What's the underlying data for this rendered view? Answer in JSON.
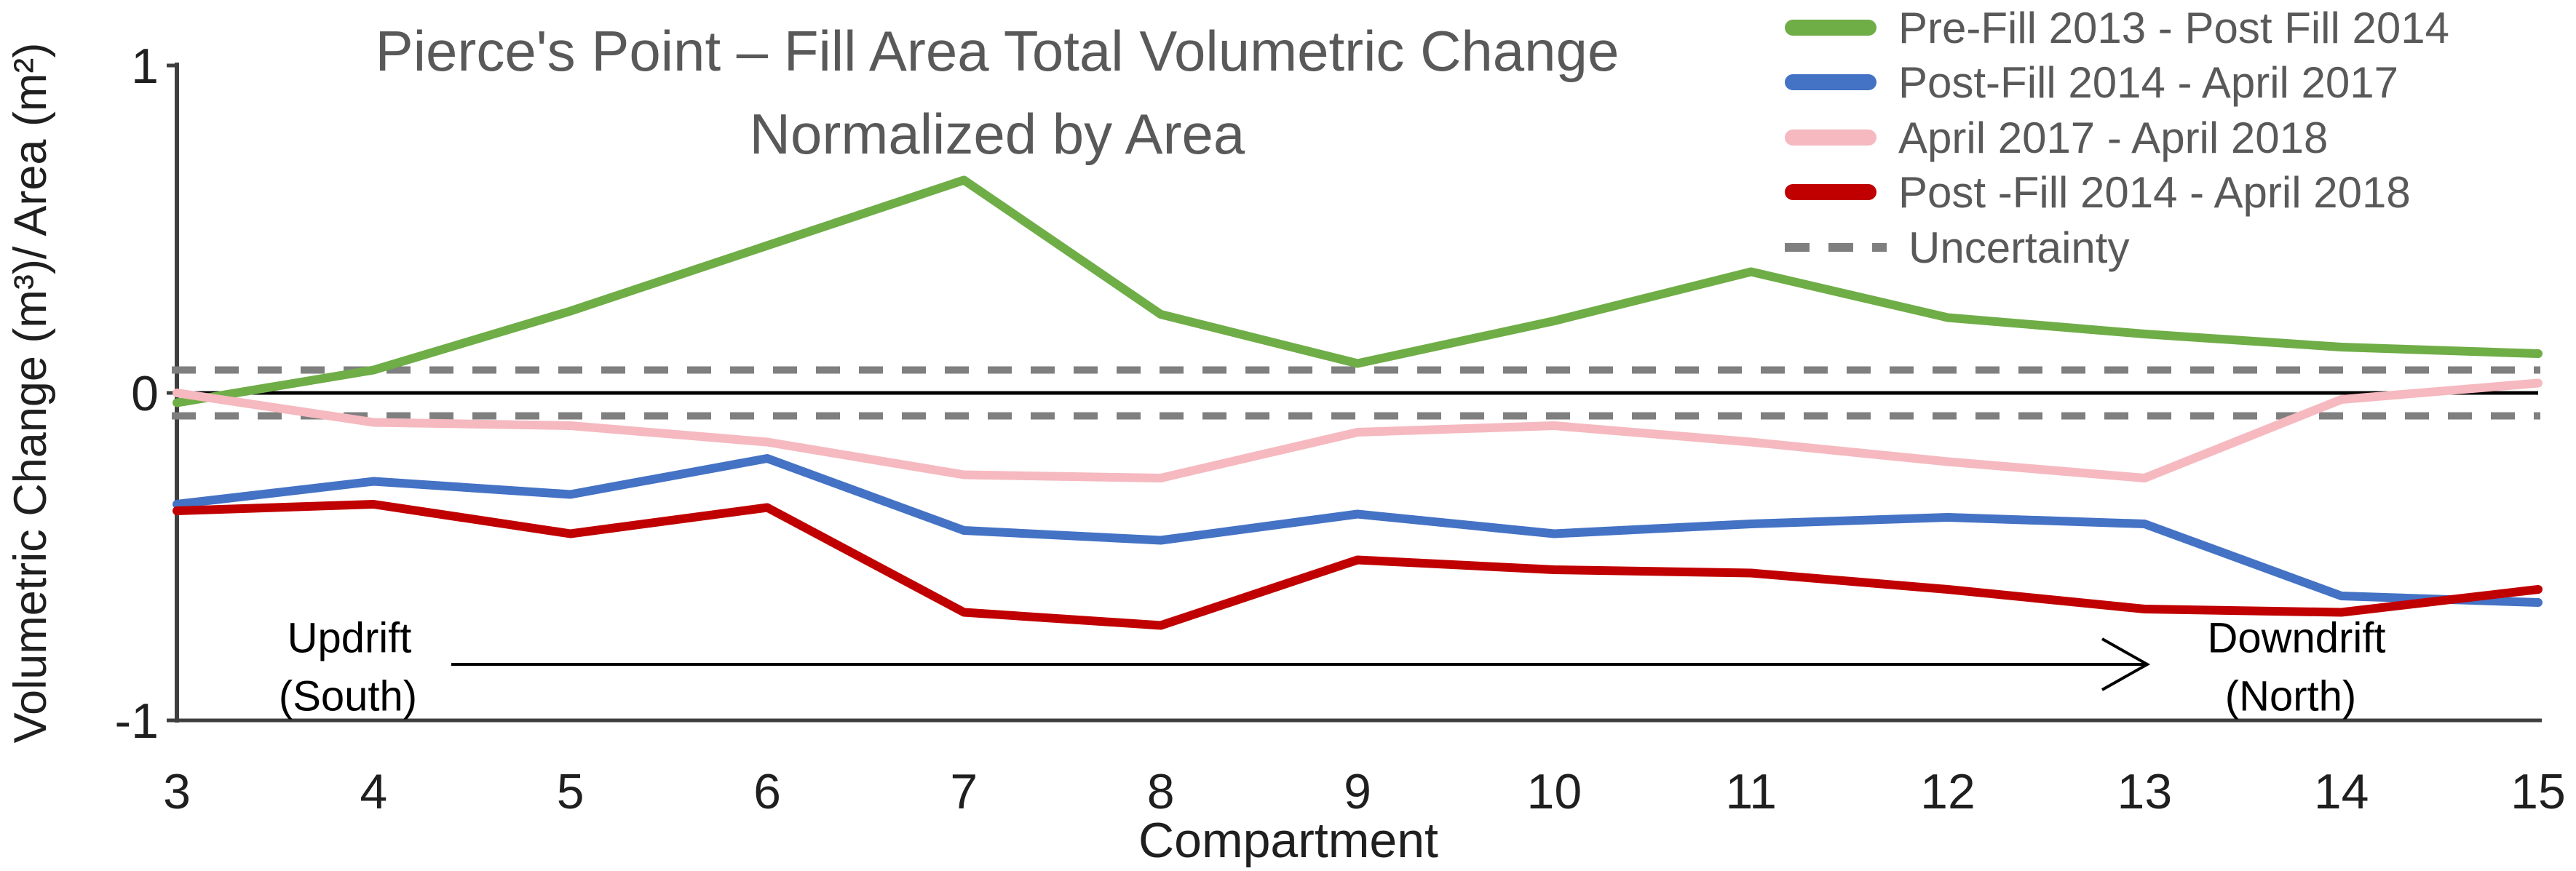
{
  "chart": {
    "title_line1": "Pierce's Point – Fill Area Total Volumetric Change",
    "title_line2": "Normalized by Area",
    "xlabel": "Compartment",
    "ylabel": "Volumetric Change (m³)/ Area (m²)"
  },
  "annotations": {
    "updrift": "Updrift",
    "updrift_sub": "(South)",
    "downdrift": "Downdrift",
    "downdrift_sub": "(North)"
  },
  "colors": {
    "title_text": "#595959",
    "legend_text": "#595959",
    "axis_text": "#1f1f1f",
    "axis_line": "#3f3f3f",
    "zero_line": "#000000",
    "uncertainty": "#7f7f7f",
    "annotation_text": "#000000"
  },
  "chart_data": {
    "type": "line",
    "categories": [
      3,
      4,
      5,
      6,
      7,
      8,
      9,
      10,
      11,
      12,
      13,
      14,
      15
    ],
    "series": [
      {
        "name": "Pre-Fill 2013 - Post Fill 2014",
        "color": "#6fad47",
        "values": [
          -0.03,
          0.07,
          0.25,
          0.45,
          0.65,
          0.24,
          0.09,
          0.22,
          0.37,
          0.23,
          0.18,
          0.14,
          0.12
        ]
      },
      {
        "name": "Post-Fill 2014 - April 2017",
        "color": "#4472c4",
        "values": [
          -0.34,
          -0.27,
          -0.31,
          -0.2,
          -0.42,
          -0.45,
          -0.37,
          -0.43,
          -0.4,
          -0.38,
          -0.4,
          -0.62,
          -0.64
        ]
      },
      {
        "name": "April 2017 - April 2018",
        "color": "#f5b9bf",
        "values": [
          0.0,
          -0.09,
          -0.1,
          -0.15,
          -0.25,
          -0.26,
          -0.12,
          -0.1,
          -0.15,
          -0.21,
          -0.26,
          -0.02,
          0.03
        ]
      },
      {
        "name": "Post -Fill 2014 - April 2018",
        "color": "#c00000",
        "values": [
          -0.36,
          -0.34,
          -0.43,
          -0.35,
          -0.67,
          -0.71,
          -0.51,
          -0.54,
          -0.55,
          -0.6,
          -0.66,
          -0.67,
          -0.6
        ]
      }
    ],
    "uncertainty": {
      "label": "Uncertainty",
      "values": [
        0.07,
        -0.07
      ],
      "color": "#7f7f7f",
      "style": "dashed"
    },
    "title": "Pierce's Point – Fill Area Total Volumetric Change Normalized by Area",
    "xlabel": "Compartment",
    "ylabel": "Volumetric Change (m³)/ Area (m²)",
    "ylim": [
      -1,
      1
    ],
    "yticks": [
      1,
      0,
      -1
    ],
    "grid": false,
    "legend_position": "top-right"
  }
}
